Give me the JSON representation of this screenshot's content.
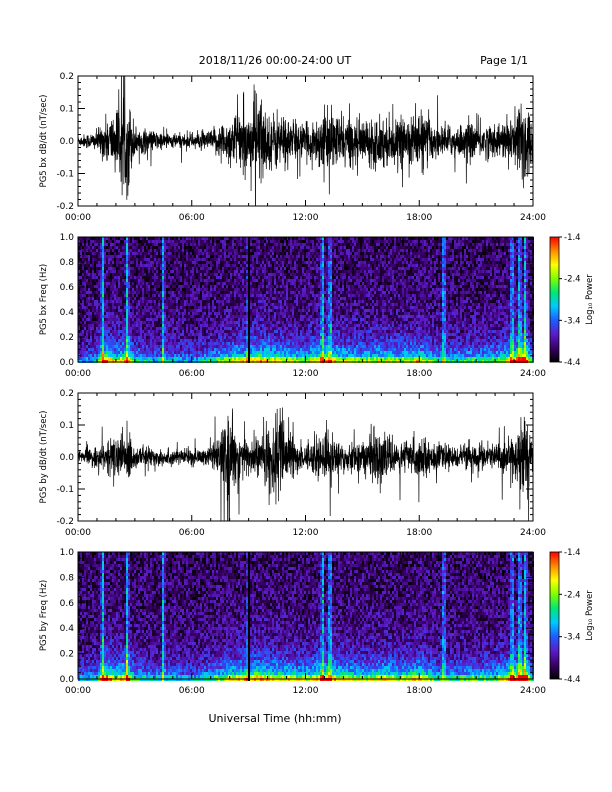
{
  "header": {
    "title": "2018/11/26  00:00-24:00 UT",
    "page_label": "Page 1/1"
  },
  "footer": {
    "xlabel": "Universal Time (hh:mm)"
  },
  "time_ticks": [
    "00:00",
    "06:00",
    "12:00",
    "18:00",
    "24:00"
  ],
  "colors": {
    "trace": "#000000",
    "colormap": [
      "#000000",
      "#3a0066",
      "#5a1cc8",
      "#1f5cff",
      "#00c8ff",
      "#00e676",
      "#7fff00",
      "#ffff00",
      "#ff8c00",
      "#ff0000"
    ]
  },
  "chart_data": [
    {
      "id": "bx-waveform",
      "type": "line",
      "ylabel": "PG5 bx dB/dt (nT/sec)",
      "xlim": [
        0,
        24
      ],
      "ylim": [
        -0.2,
        0.2
      ],
      "yticks": [
        "0.2",
        "0.1",
        "0.0",
        "-0.1",
        "-0.2"
      ],
      "yvals": [
        0.2,
        0.1,
        0.0,
        -0.1,
        -0.2
      ],
      "amplitude_envelope": {
        "x": [
          0,
          1,
          1.5,
          2,
          2.6,
          3,
          4,
          5,
          6,
          7,
          7.5,
          8,
          8.5,
          9,
          9.3,
          9.6,
          10,
          10.5,
          11,
          12,
          13,
          14,
          15,
          16,
          17,
          18,
          19,
          20,
          21,
          22,
          23,
          23.4,
          23.7,
          24
        ],
        "amp": [
          0.02,
          0.04,
          0.09,
          0.12,
          0.2,
          0.06,
          0.04,
          0.03,
          0.03,
          0.04,
          0.07,
          0.09,
          0.12,
          0.1,
          0.2,
          0.2,
          0.1,
          0.12,
          0.1,
          0.06,
          0.12,
          0.1,
          0.08,
          0.1,
          0.08,
          0.12,
          0.06,
          0.06,
          0.08,
          0.06,
          0.1,
          0.2,
          0.2,
          0.05
        ]
      }
    },
    {
      "id": "bx-spectrogram",
      "type": "heatmap",
      "ylabel": "PG5 bx Freq (Hz)",
      "xlim": [
        0,
        24
      ],
      "ylim": [
        0,
        1.0
      ],
      "yticks": [
        "1.0",
        "0.8",
        "0.6",
        "0.4",
        "0.2",
        "0.0"
      ],
      "yvals": [
        1.0,
        0.8,
        0.6,
        0.4,
        0.2,
        0.0
      ],
      "colorbar": {
        "label": "Log₁₀ Power",
        "ticks": [
          "-1.4",
          "-2.4",
          "-3.4",
          "-4.4"
        ],
        "tick_values": [
          -1.4,
          -2.4,
          -3.4,
          -4.4
        ],
        "range": [
          -4.4,
          -1.4
        ]
      },
      "activity": {
        "x": [
          0,
          1,
          1.5,
          2,
          2.6,
          3,
          4,
          5,
          6,
          7,
          8,
          9,
          9.5,
          10,
          11,
          12,
          13,
          14,
          15,
          16,
          17,
          18,
          19,
          20,
          21,
          22,
          23,
          23.5,
          24
        ],
        "level": [
          0.2,
          0.3,
          0.7,
          0.45,
          0.6,
          0.35,
          0.3,
          0.3,
          0.25,
          0.35,
          0.5,
          0.55,
          0.6,
          0.55,
          0.5,
          0.45,
          0.6,
          0.5,
          0.45,
          0.5,
          0.45,
          0.55,
          0.35,
          0.35,
          0.4,
          0.4,
          0.6,
          0.8,
          0.3
        ]
      },
      "vertical_streaks_hours": [
        1.3,
        2.6,
        4.5,
        9.0,
        12.9,
        13.3,
        19.3,
        22.9,
        23.3,
        23.6
      ],
      "data_gap_hours": [
        9.05
      ]
    },
    {
      "id": "by-waveform",
      "type": "line",
      "ylabel": "PG5 by dB/dt (nT/sec)",
      "xlim": [
        0,
        24
      ],
      "ylim": [
        -0.2,
        0.2
      ],
      "yticks": [
        "0.2",
        "0.1",
        "0.0",
        "-0.1",
        "-0.2"
      ],
      "yvals": [
        0.2,
        0.1,
        0.0,
        -0.1,
        -0.2
      ],
      "amplitude_envelope": {
        "x": [
          0,
          1,
          1.5,
          2,
          2.6,
          3,
          4,
          5,
          6,
          7,
          7.5,
          8,
          8.5,
          9,
          9.5,
          10,
          10.5,
          11,
          12,
          13,
          14,
          15,
          15.5,
          16,
          17,
          18,
          19,
          20,
          21,
          22,
          23,
          23.5,
          24
        ],
        "amp": [
          0.02,
          0.04,
          0.06,
          0.08,
          0.12,
          0.04,
          0.04,
          0.03,
          0.03,
          0.04,
          0.09,
          0.16,
          0.1,
          0.08,
          0.08,
          0.1,
          0.2,
          0.1,
          0.05,
          0.1,
          0.06,
          0.06,
          0.12,
          0.08,
          0.06,
          0.08,
          0.05,
          0.04,
          0.06,
          0.05,
          0.08,
          0.2,
          0.04
        ]
      }
    },
    {
      "id": "by-spectrogram",
      "type": "heatmap",
      "ylabel": "PG5 by Freq (Hz)",
      "xlim": [
        0,
        24
      ],
      "ylim": [
        0,
        1.0
      ],
      "yticks": [
        "1.0",
        "0.8",
        "0.6",
        "0.4",
        "0.2",
        "0.0"
      ],
      "yvals": [
        1.0,
        0.8,
        0.6,
        0.4,
        0.2,
        0.0
      ],
      "colorbar": {
        "label": "Log₁₀ Power",
        "ticks": [
          "-1.4",
          "-2.4",
          "-3.4",
          "-4.4"
        ],
        "tick_values": [
          -1.4,
          -2.4,
          -3.4,
          -4.4
        ],
        "range": [
          -4.4,
          -1.4
        ]
      },
      "activity": {
        "x": [
          0,
          1,
          1.5,
          2,
          2.6,
          3,
          4,
          5,
          6,
          7,
          8,
          9,
          9.5,
          10,
          11,
          12,
          13,
          14,
          15,
          16,
          17,
          18,
          19,
          20,
          21,
          22,
          23,
          23.5,
          24
        ],
        "level": [
          0.2,
          0.3,
          0.7,
          0.45,
          0.6,
          0.35,
          0.3,
          0.3,
          0.25,
          0.35,
          0.5,
          0.55,
          0.6,
          0.55,
          0.5,
          0.45,
          0.6,
          0.5,
          0.45,
          0.5,
          0.45,
          0.55,
          0.35,
          0.35,
          0.4,
          0.4,
          0.6,
          0.8,
          0.3
        ]
      },
      "vertical_streaks_hours": [
        1.3,
        2.6,
        4.5,
        9.0,
        12.9,
        13.3,
        19.3,
        22.9,
        23.3,
        23.6
      ],
      "data_gap_hours": [
        9.05
      ]
    }
  ]
}
